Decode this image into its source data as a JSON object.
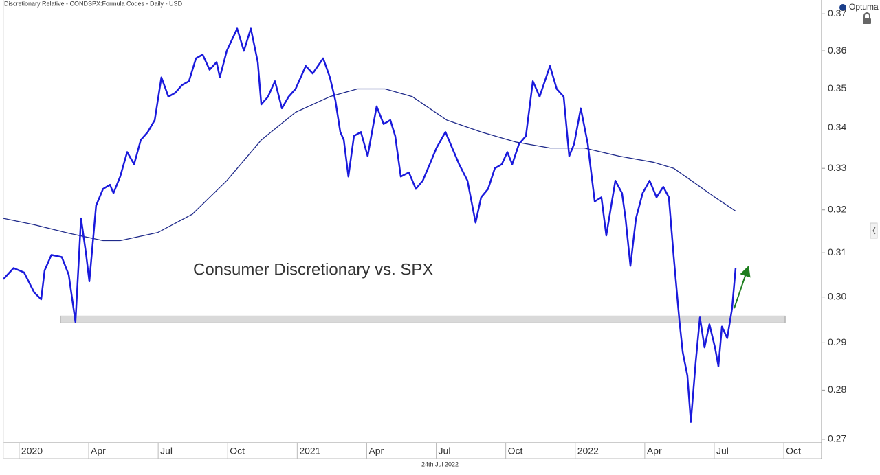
{
  "chart_data": {
    "type": "line",
    "header": "Discretionary Relative - CONDSPX:Formula Codes - Daily - USD",
    "logo": "Optuma",
    "annotation": "Consumer Discretionary vs. SPX",
    "footer": "24th Jul 2022",
    "log_scale": true,
    "xlim": [
      -0.68,
      34.63
    ],
    "ylim": [
      0.2693,
      0.3723
    ],
    "xticks": [
      {
        "value": 0,
        "label": "2020"
      },
      {
        "value": 3,
        "label": "Apr"
      },
      {
        "value": 6,
        "label": "Jul"
      },
      {
        "value": 9,
        "label": "Oct"
      },
      {
        "value": 12,
        "label": "2021"
      },
      {
        "value": 15,
        "label": "Apr"
      },
      {
        "value": 18,
        "label": "Jul"
      },
      {
        "value": 21,
        "label": "Oct"
      },
      {
        "value": 24,
        "label": "2022"
      },
      {
        "value": 27,
        "label": "Apr"
      },
      {
        "value": 30,
        "label": "Jul"
      },
      {
        "value": 33,
        "label": "Oct"
      }
    ],
    "yticks": [
      0.37,
      0.36,
      0.35,
      0.34,
      0.33,
      0.32,
      0.31,
      {
        "value": 0.3,
        "label": "0.30"
      },
      0.29,
      0.28,
      0.27
    ],
    "series": [
      {
        "color": "#1a1adc",
        "width": 2.5,
        "x": [
          -0.68,
          -0.24,
          0.21,
          0.65,
          0.95,
          1.1,
          1.39,
          1.84,
          2.14,
          2.43,
          2.67,
          2.88,
          3.03,
          3.32,
          3.62,
          3.92,
          4.07,
          4.36,
          4.66,
          4.96,
          5.25,
          5.55,
          5.85,
          6.14,
          6.44,
          6.74,
          7.03,
          7.33,
          7.63,
          7.92,
          8.22,
          8.52,
          8.66,
          8.96,
          9.41,
          9.7,
          10.0,
          10.3,
          10.45,
          10.74,
          11.04,
          11.34,
          11.63,
          11.93,
          12.37,
          12.67,
          13.12,
          13.41,
          13.65,
          13.86,
          14.01,
          14.21,
          14.45,
          14.75,
          15.04,
          15.43,
          15.73,
          16.02,
          16.23,
          16.47,
          16.82,
          17.12,
          17.42,
          17.72,
          18.01,
          18.4,
          18.69,
          18.99,
          19.35,
          19.7,
          19.94,
          20.24,
          20.53,
          20.83,
          21.07,
          21.28,
          21.57,
          21.87,
          22.17,
          22.46,
          22.91,
          23.2,
          23.5,
          23.74,
          23.95,
          24.24,
          24.54,
          24.84,
          25.13,
          25.34,
          25.73,
          26.02,
          26.17,
          26.38,
          26.62,
          26.91,
          27.21,
          27.51,
          27.8,
          28.04,
          28.25,
          28.49,
          28.64,
          28.84,
          28.99,
          29.2,
          29.38,
          29.58,
          29.79,
          30.03,
          30.18,
          30.33,
          30.56,
          30.77,
          30.92
        ],
        "values": [
          0.304,
          0.3065,
          0.3055,
          0.301,
          0.2995,
          0.306,
          0.3095,
          0.309,
          0.305,
          0.2945,
          0.318,
          0.31,
          0.3035,
          0.321,
          0.325,
          0.326,
          0.324,
          0.328,
          0.334,
          0.331,
          0.337,
          0.339,
          0.342,
          0.353,
          0.348,
          0.349,
          0.351,
          0.352,
          0.358,
          0.359,
          0.355,
          0.357,
          0.353,
          0.36,
          0.366,
          0.36,
          0.366,
          0.357,
          0.346,
          0.348,
          0.352,
          0.345,
          0.348,
          0.35,
          0.356,
          0.354,
          0.358,
          0.353,
          0.347,
          0.339,
          0.337,
          0.328,
          0.338,
          0.339,
          0.333,
          0.3455,
          0.341,
          0.342,
          0.338,
          0.328,
          0.329,
          0.325,
          0.327,
          0.331,
          0.335,
          0.339,
          0.335,
          0.331,
          0.327,
          0.317,
          0.323,
          0.325,
          0.33,
          0.331,
          0.334,
          0.331,
          0.336,
          0.338,
          0.352,
          0.348,
          0.356,
          0.35,
          0.348,
          0.333,
          0.336,
          0.345,
          0.336,
          0.322,
          0.323,
          0.314,
          0.327,
          0.324,
          0.318,
          0.307,
          0.318,
          0.324,
          0.327,
          0.323,
          0.3255,
          0.323,
          0.309,
          0.295,
          0.288,
          0.283,
          0.2735,
          0.286,
          0.2955,
          0.289,
          0.294,
          0.289,
          0.285,
          0.2935,
          0.291,
          0.2975,
          0.3065
        ]
      },
      {
        "color": "#1f2a8a",
        "width": 1.3,
        "x": [
          -0.68,
          0.65,
          2.14,
          3.62,
          4.36,
          5.99,
          7.48,
          8.96,
          10.45,
          11.93,
          13.41,
          14.6,
          15.79,
          16.97,
          18.46,
          19.94,
          21.42,
          22.91,
          24.39,
          25.88,
          27.36,
          28.25,
          29.14,
          30.03,
          30.92
        ],
        "values": [
          0.318,
          0.3165,
          0.3145,
          0.3128,
          0.3128,
          0.3147,
          0.319,
          0.327,
          0.337,
          0.344,
          0.348,
          0.35,
          0.35,
          0.348,
          0.342,
          0.339,
          0.3365,
          0.335,
          0.335,
          0.333,
          0.3315,
          0.33,
          0.3265,
          0.323,
          0.3197
        ]
      }
    ],
    "support_band": {
      "x": [
        1.78,
        33.06
      ],
      "y": [
        0.2943,
        0.2958
      ],
      "color": "#d9d9d9"
    },
    "arrow": {
      "x": [
        30.86,
        31.45
      ],
      "y": [
        0.2975,
        0.3065
      ],
      "color": "#1e7e1e"
    }
  }
}
